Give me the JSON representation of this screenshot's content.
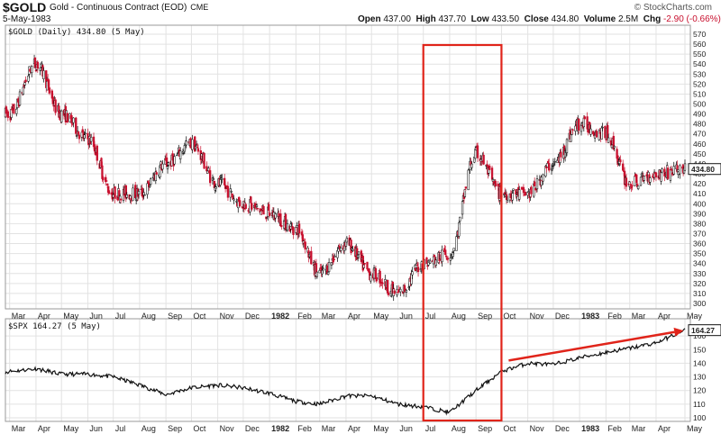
{
  "header": {
    "symbol": "$GOLD",
    "title": "Gold - Continuous Contract (EOD)",
    "exchange": "CME",
    "watermark": "© StockCharts.com",
    "date": "5-May-1983",
    "open_label": "Open",
    "open": "437.00",
    "high_label": "High",
    "high": "437.70",
    "low_label": "Low",
    "low": "433.50",
    "close_label": "Close",
    "close": "434.80",
    "volume_label": "Volume",
    "volume": "2.5M",
    "chg_label": "Chg",
    "chg": "-2.90 (-0.66%)"
  },
  "colors": {
    "up_bar": "#000000",
    "down_bar": "#c8102e",
    "highlight": "#e0241a",
    "grid": "#e2e2e2"
  },
  "chart_data": [
    {
      "type": "line",
      "subtype": "candlestick",
      "legend": "$GOLD (Daily) 434.80 (5 May)",
      "last_value_label": "434.80",
      "ylim": [
        300,
        570
      ],
      "y_ticks": [
        300,
        310,
        320,
        330,
        340,
        350,
        360,
        370,
        380,
        390,
        400,
        410,
        420,
        430,
        440,
        450,
        460,
        470,
        480,
        490,
        500,
        510,
        520,
        530,
        540,
        550,
        560,
        570
      ],
      "x_tick_labels": [
        "Mar",
        "Apr",
        "May",
        "Jun",
        "Jul",
        "Aug",
        "Sep",
        "Oct",
        "Nov",
        "Dec",
        "1982",
        "Feb",
        "Mar",
        "Apr",
        "May",
        "Jun",
        "Jul",
        "Aug",
        "Sep",
        "Oct",
        "Nov",
        "Dec",
        "1983",
        "Feb",
        "Mar",
        "Apr",
        "May"
      ],
      "x": [
        "1981-03-01",
        "1981-04-01",
        "1981-05-01",
        "1981-06-01",
        "1981-07-01",
        "1981-08-01",
        "1981-09-01",
        "1981-10-01",
        "1981-11-01",
        "1981-12-01",
        "1982-01-01",
        "1982-02-01",
        "1982-03-01",
        "1982-04-01",
        "1982-05-01",
        "1982-06-01",
        "1982-07-01",
        "1982-08-01",
        "1982-09-01",
        "1982-10-01",
        "1982-11-01",
        "1982-12-01",
        "1983-01-01",
        "1983-02-01",
        "1983-03-01",
        "1983-04-01",
        "1983-05-05"
      ],
      "y": [
        490,
        540,
        490,
        465,
        410,
        410,
        440,
        460,
        420,
        400,
        390,
        375,
        330,
        360,
        330,
        310,
        340,
        350,
        450,
        410,
        410,
        440,
        480,
        470,
        420,
        430,
        434.8
      ],
      "grid": true,
      "highlight": {
        "shape": "rectangle",
        "from": "1982-07-01",
        "to": "1982-10-01"
      }
    },
    {
      "type": "line",
      "legend": "$SPX 164.27 (5 May)",
      "last_value_label": "164.27",
      "ylim": [
        100,
        170
      ],
      "y_ticks": [
        100,
        110,
        120,
        130,
        140,
        150,
        160
      ],
      "x_tick_labels": [
        "Mar",
        "Apr",
        "May",
        "Jun",
        "Jul",
        "Aug",
        "Sep",
        "Oct",
        "Nov",
        "Dec",
        "1982",
        "Feb",
        "Mar",
        "Apr",
        "May",
        "Jun",
        "Jul",
        "Aug",
        "Sep",
        "Oct",
        "Nov",
        "Dec",
        "1983",
        "Feb",
        "Mar",
        "Apr",
        "May"
      ],
      "x": [
        "1981-03-01",
        "1981-04-01",
        "1981-05-01",
        "1981-06-01",
        "1981-07-01",
        "1981-08-01",
        "1981-09-01",
        "1981-10-01",
        "1981-11-01",
        "1981-12-01",
        "1982-01-01",
        "1982-02-01",
        "1982-03-01",
        "1982-04-01",
        "1982-05-01",
        "1982-06-01",
        "1982-07-01",
        "1982-08-01",
        "1982-09-01",
        "1982-10-01",
        "1982-11-01",
        "1982-12-01",
        "1983-01-01",
        "1983-02-01",
        "1983-03-01",
        "1983-04-01",
        "1983-05-05"
      ],
      "y": [
        134,
        136,
        132,
        132,
        130,
        124,
        117,
        122,
        124,
        122,
        118,
        112,
        110,
        116,
        116,
        110,
        108,
        104,
        120,
        134,
        140,
        139,
        144,
        148,
        151,
        155,
        164.27
      ],
      "grid": true,
      "annotation": {
        "shape": "arrow",
        "from": [
          "1982-10-01",
          142
        ],
        "to": [
          "1983-05-01",
          164
        ]
      }
    }
  ]
}
